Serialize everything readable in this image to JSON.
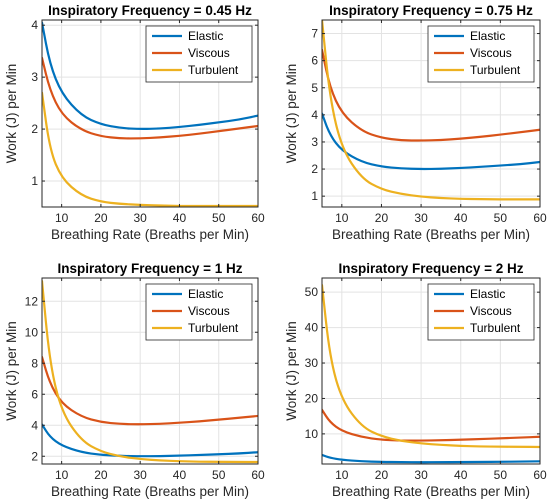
{
  "chart_data": [
    {
      "type": "line",
      "title": "Inspiratory Frequency = 0.45 Hz",
      "xlabel": "Breathing Rate (Breaths per Min)",
      "ylabel": "Work (J) per Min",
      "xlim": [
        5,
        60
      ],
      "ylim": [
        0.5,
        4.1
      ],
      "xticks": [
        10,
        20,
        30,
        40,
        50,
        60
      ],
      "yticks": [
        1,
        2,
        3,
        4
      ],
      "grid": true,
      "legend_position": "top-right",
      "series": [
        {
          "name": "Elastic",
          "color": "#0072BD",
          "x": [
            5,
            7,
            10,
            15,
            20,
            25,
            30,
            35,
            40,
            45,
            50,
            55,
            60
          ],
          "y": [
            4.05,
            3.25,
            2.68,
            2.26,
            2.09,
            2.02,
            2.0,
            2.01,
            2.04,
            2.08,
            2.13,
            2.18,
            2.26
          ]
        },
        {
          "name": "Viscous",
          "color": "#D95319",
          "x": [
            5,
            7,
            10,
            15,
            20,
            25,
            30,
            35,
            40,
            45,
            50,
            55,
            60
          ],
          "y": [
            3.37,
            2.75,
            2.28,
            1.98,
            1.86,
            1.82,
            1.82,
            1.84,
            1.87,
            1.91,
            1.96,
            2.01,
            2.06
          ]
        },
        {
          "name": "Turbulent",
          "color": "#EDB120",
          "x": [
            5,
            7,
            10,
            15,
            20,
            25,
            30,
            35,
            40,
            45,
            50,
            55,
            60
          ],
          "y": [
            2.7,
            1.6,
            1.05,
            0.72,
            0.6,
            0.56,
            0.54,
            0.53,
            0.52,
            0.52,
            0.52,
            0.52,
            0.52
          ]
        }
      ]
    },
    {
      "type": "line",
      "title": "Inspiratory Frequency = 0.75 Hz",
      "xlabel": "Breathing Rate (Breaths per Min)",
      "ylabel": "Work (J) per Min",
      "xlim": [
        5,
        60
      ],
      "ylim": [
        0.6,
        7.5
      ],
      "xticks": [
        10,
        20,
        30,
        40,
        50,
        60
      ],
      "yticks": [
        1,
        2,
        3,
        4,
        5,
        6,
        7
      ],
      "grid": true,
      "legend_position": "top-right",
      "series": [
        {
          "name": "Elastic",
          "color": "#0072BD",
          "x": [
            5,
            7,
            10,
            15,
            20,
            25,
            30,
            35,
            40,
            45,
            50,
            55,
            60
          ],
          "y": [
            4.05,
            3.25,
            2.68,
            2.26,
            2.09,
            2.02,
            2.0,
            2.01,
            2.04,
            2.08,
            2.13,
            2.18,
            2.26
          ]
        },
        {
          "name": "Viscous",
          "color": "#D95319",
          "x": [
            5,
            7,
            10,
            15,
            20,
            25,
            30,
            35,
            40,
            45,
            50,
            55,
            60
          ],
          "y": [
            6.4,
            5.0,
            4.05,
            3.4,
            3.15,
            3.06,
            3.05,
            3.07,
            3.12,
            3.19,
            3.27,
            3.36,
            3.45
          ]
        },
        {
          "name": "Turbulent",
          "color": "#EDB120",
          "x": [
            5,
            7,
            10,
            15,
            20,
            25,
            30,
            35,
            40,
            45,
            50,
            55,
            60
          ],
          "y": [
            7.5,
            4.6,
            2.75,
            1.65,
            1.25,
            1.08,
            0.98,
            0.93,
            0.9,
            0.89,
            0.88,
            0.88,
            0.88
          ]
        }
      ]
    },
    {
      "type": "line",
      "title": "Inspiratory Frequency = 1 Hz",
      "xlabel": "Breathing Rate (Breaths per Min)",
      "ylabel": "Work (J) per Min",
      "xlim": [
        5,
        60
      ],
      "ylim": [
        1.5,
        13.5
      ],
      "xticks": [
        10,
        20,
        30,
        40,
        50,
        60
      ],
      "yticks": [
        2,
        4,
        6,
        8,
        10,
        12
      ],
      "grid": true,
      "legend_position": "top-right",
      "series": [
        {
          "name": "Elastic",
          "color": "#0072BD",
          "x": [
            5,
            7,
            10,
            15,
            20,
            25,
            30,
            35,
            40,
            45,
            50,
            55,
            60
          ],
          "y": [
            4.05,
            3.25,
            2.68,
            2.26,
            2.09,
            2.02,
            2.0,
            2.01,
            2.04,
            2.08,
            2.13,
            2.18,
            2.26
          ]
        },
        {
          "name": "Viscous",
          "color": "#D95319",
          "x": [
            5,
            7,
            10,
            15,
            20,
            25,
            30,
            35,
            40,
            45,
            50,
            55,
            60
          ],
          "y": [
            8.4,
            6.7,
            5.4,
            4.55,
            4.2,
            4.08,
            4.06,
            4.09,
            4.16,
            4.25,
            4.36,
            4.48,
            4.6
          ]
        },
        {
          "name": "Turbulent",
          "color": "#EDB120",
          "x": [
            5,
            7,
            10,
            15,
            20,
            25,
            30,
            35,
            40,
            45,
            50,
            55,
            60
          ],
          "y": [
            13.3,
            8.0,
            4.85,
            3.0,
            2.3,
            1.98,
            1.82,
            1.73,
            1.68,
            1.65,
            1.64,
            1.63,
            1.63
          ]
        }
      ]
    },
    {
      "type": "line",
      "title": "Inspiratory Frequency = 2 Hz",
      "xlabel": "Breathing Rate (Breaths per Min)",
      "ylabel": "Work (J) per Min",
      "xlim": [
        5,
        60
      ],
      "ylim": [
        1.5,
        54
      ],
      "xticks": [
        10,
        20,
        30,
        40,
        50,
        60
      ],
      "yticks": [
        10,
        20,
        30,
        40,
        50
      ],
      "grid": true,
      "legend_position": "top-right",
      "series": [
        {
          "name": "Elastic",
          "color": "#0072BD",
          "x": [
            5,
            7,
            10,
            15,
            20,
            25,
            30,
            35,
            40,
            45,
            50,
            55,
            60
          ],
          "y": [
            4.05,
            3.25,
            2.68,
            2.26,
            2.09,
            2.02,
            2.0,
            2.01,
            2.04,
            2.08,
            2.13,
            2.18,
            2.26
          ]
        },
        {
          "name": "Viscous",
          "color": "#D95319",
          "x": [
            5,
            7,
            10,
            15,
            20,
            25,
            30,
            35,
            40,
            45,
            50,
            55,
            60
          ],
          "y": [
            16.8,
            13.3,
            10.8,
            9.1,
            8.35,
            8.1,
            8.1,
            8.2,
            8.35,
            8.55,
            8.75,
            8.95,
            9.2
          ]
        },
        {
          "name": "Turbulent",
          "color": "#EDB120",
          "x": [
            5,
            7,
            10,
            15,
            20,
            25,
            30,
            35,
            40,
            45,
            50,
            55,
            60
          ],
          "y": [
            52.0,
            31.5,
            19.5,
            12.0,
            9.3,
            8.0,
            7.3,
            6.9,
            6.6,
            6.45,
            6.4,
            6.35,
            6.3
          ]
        }
      ]
    }
  ]
}
